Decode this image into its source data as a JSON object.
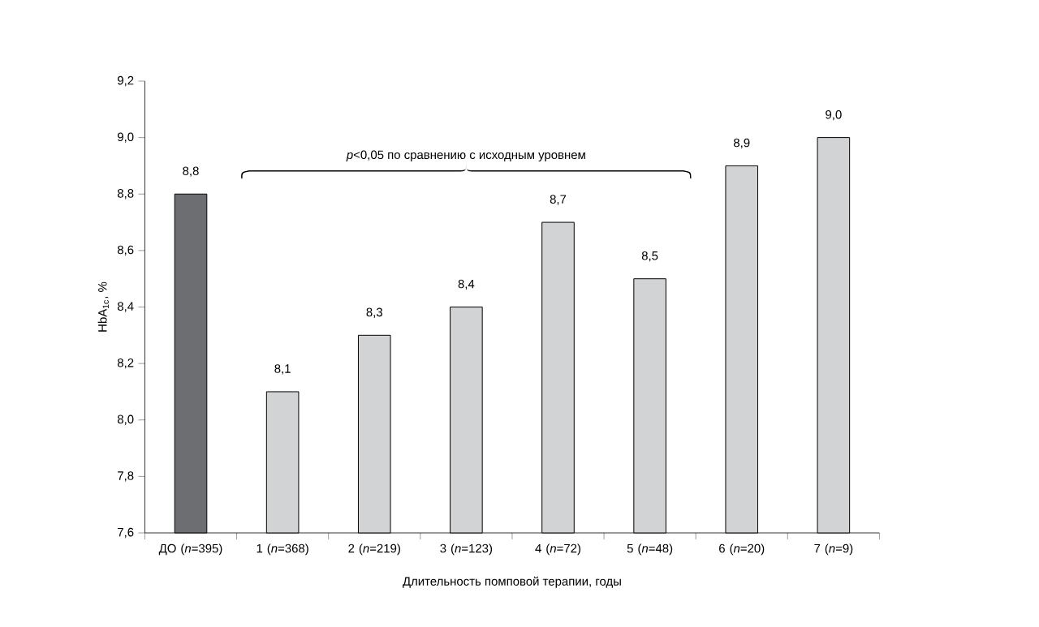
{
  "chart_data": {
    "type": "bar",
    "xlabel": "Длительность помповой терапии, годы",
    "ylabel": "HbA$_{1c}$, %",
    "categories": [
      "ДО (*n*=395)",
      "1 (*n*=368)",
      "2 (*n*=219)",
      "3 (*n*=123)",
      "4 (*n*=72)",
      "5 (*n*=48)",
      "6 (*n*=20)",
      "7 (*n*=9)"
    ],
    "values": [
      8.8,
      8.1,
      8.3,
      8.4,
      8.7,
      8.5,
      8.9,
      9.0
    ],
    "value_labels": [
      "8,8",
      "8,1",
      "8,3",
      "8,4",
      "8,7",
      "8,5",
      "8,9",
      "9,0"
    ],
    "colors": [
      "#6d6e71",
      "#d1d3d4",
      "#d1d3d4",
      "#d1d3d4",
      "#d1d3d4",
      "#d1d3d4",
      "#d1d3d4",
      "#d1d3d4"
    ],
    "ylim": [
      7.6,
      9.2
    ],
    "yticks": [
      {
        "value": 7.6,
        "label": "7,6"
      },
      {
        "value": 7.8,
        "label": "7,8"
      },
      {
        "value": 8.0,
        "label": "8,0"
      },
      {
        "value": 8.2,
        "label": "8,2"
      },
      {
        "value": 8.4,
        "label": "8,4"
      },
      {
        "value": 8.6,
        "label": "8,6"
      },
      {
        "value": 8.8,
        "label": "8,8"
      },
      {
        "value": 9.0,
        "label": "9,0"
      },
      {
        "value": 9.2,
        "label": "9,2"
      }
    ],
    "annotations": [
      "*p*<0,05 по сравнению с исходным уровнем"
    ]
  }
}
